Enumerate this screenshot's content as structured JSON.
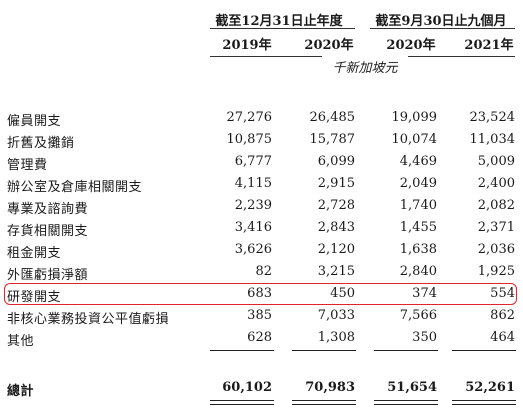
{
  "header": {
    "year_group_label": "截至12月31日止年度",
    "nine_month_group_label": "截至9月30日止九個月",
    "columns": [
      "2019年",
      "2020年",
      "2020年",
      "2021年"
    ],
    "unit": "千新加坡元"
  },
  "rows": [
    {
      "label": "僱員開支",
      "values": [
        "27,276",
        "26,485",
        "19,099",
        "23,524"
      ]
    },
    {
      "label": "折舊及攤銷",
      "values": [
        "10,875",
        "15,787",
        "10,074",
        "11,034"
      ]
    },
    {
      "label": "管理費",
      "values": [
        "6,777",
        "6,099",
        "4,469",
        "5,009"
      ]
    },
    {
      "label": "辦公室及倉庫相關開支",
      "values": [
        "4,115",
        "2,915",
        "2,049",
        "2,400"
      ]
    },
    {
      "label": "專業及諮詢費",
      "values": [
        "2,239",
        "2,728",
        "1,740",
        "2,082"
      ]
    },
    {
      "label": "存貨相關開支",
      "values": [
        "3,416",
        "2,843",
        "1,455",
        "2,371"
      ]
    },
    {
      "label": "租金開支",
      "values": [
        "3,626",
        "2,120",
        "1,638",
        "2,036"
      ]
    },
    {
      "label": "外匯虧損淨額",
      "values": [
        "82",
        "3,215",
        "2,840",
        "1,925"
      ]
    },
    {
      "label": "研發開支",
      "values": [
        "683",
        "450",
        "374",
        "554"
      ],
      "highlighted": true
    },
    {
      "label": "非核心業務投資公平值虧損",
      "values": [
        "385",
        "7,033",
        "7,566",
        "862"
      ]
    },
    {
      "label": "其他",
      "values": [
        "628",
        "1,308",
        "350",
        "464"
      ]
    }
  ],
  "total": {
    "label": "總計",
    "values": [
      "60,102",
      "70,983",
      "51,654",
      "52,261"
    ]
  },
  "colors": {
    "highlight_border": "#e0242b",
    "text": "#1a1a1a"
  }
}
